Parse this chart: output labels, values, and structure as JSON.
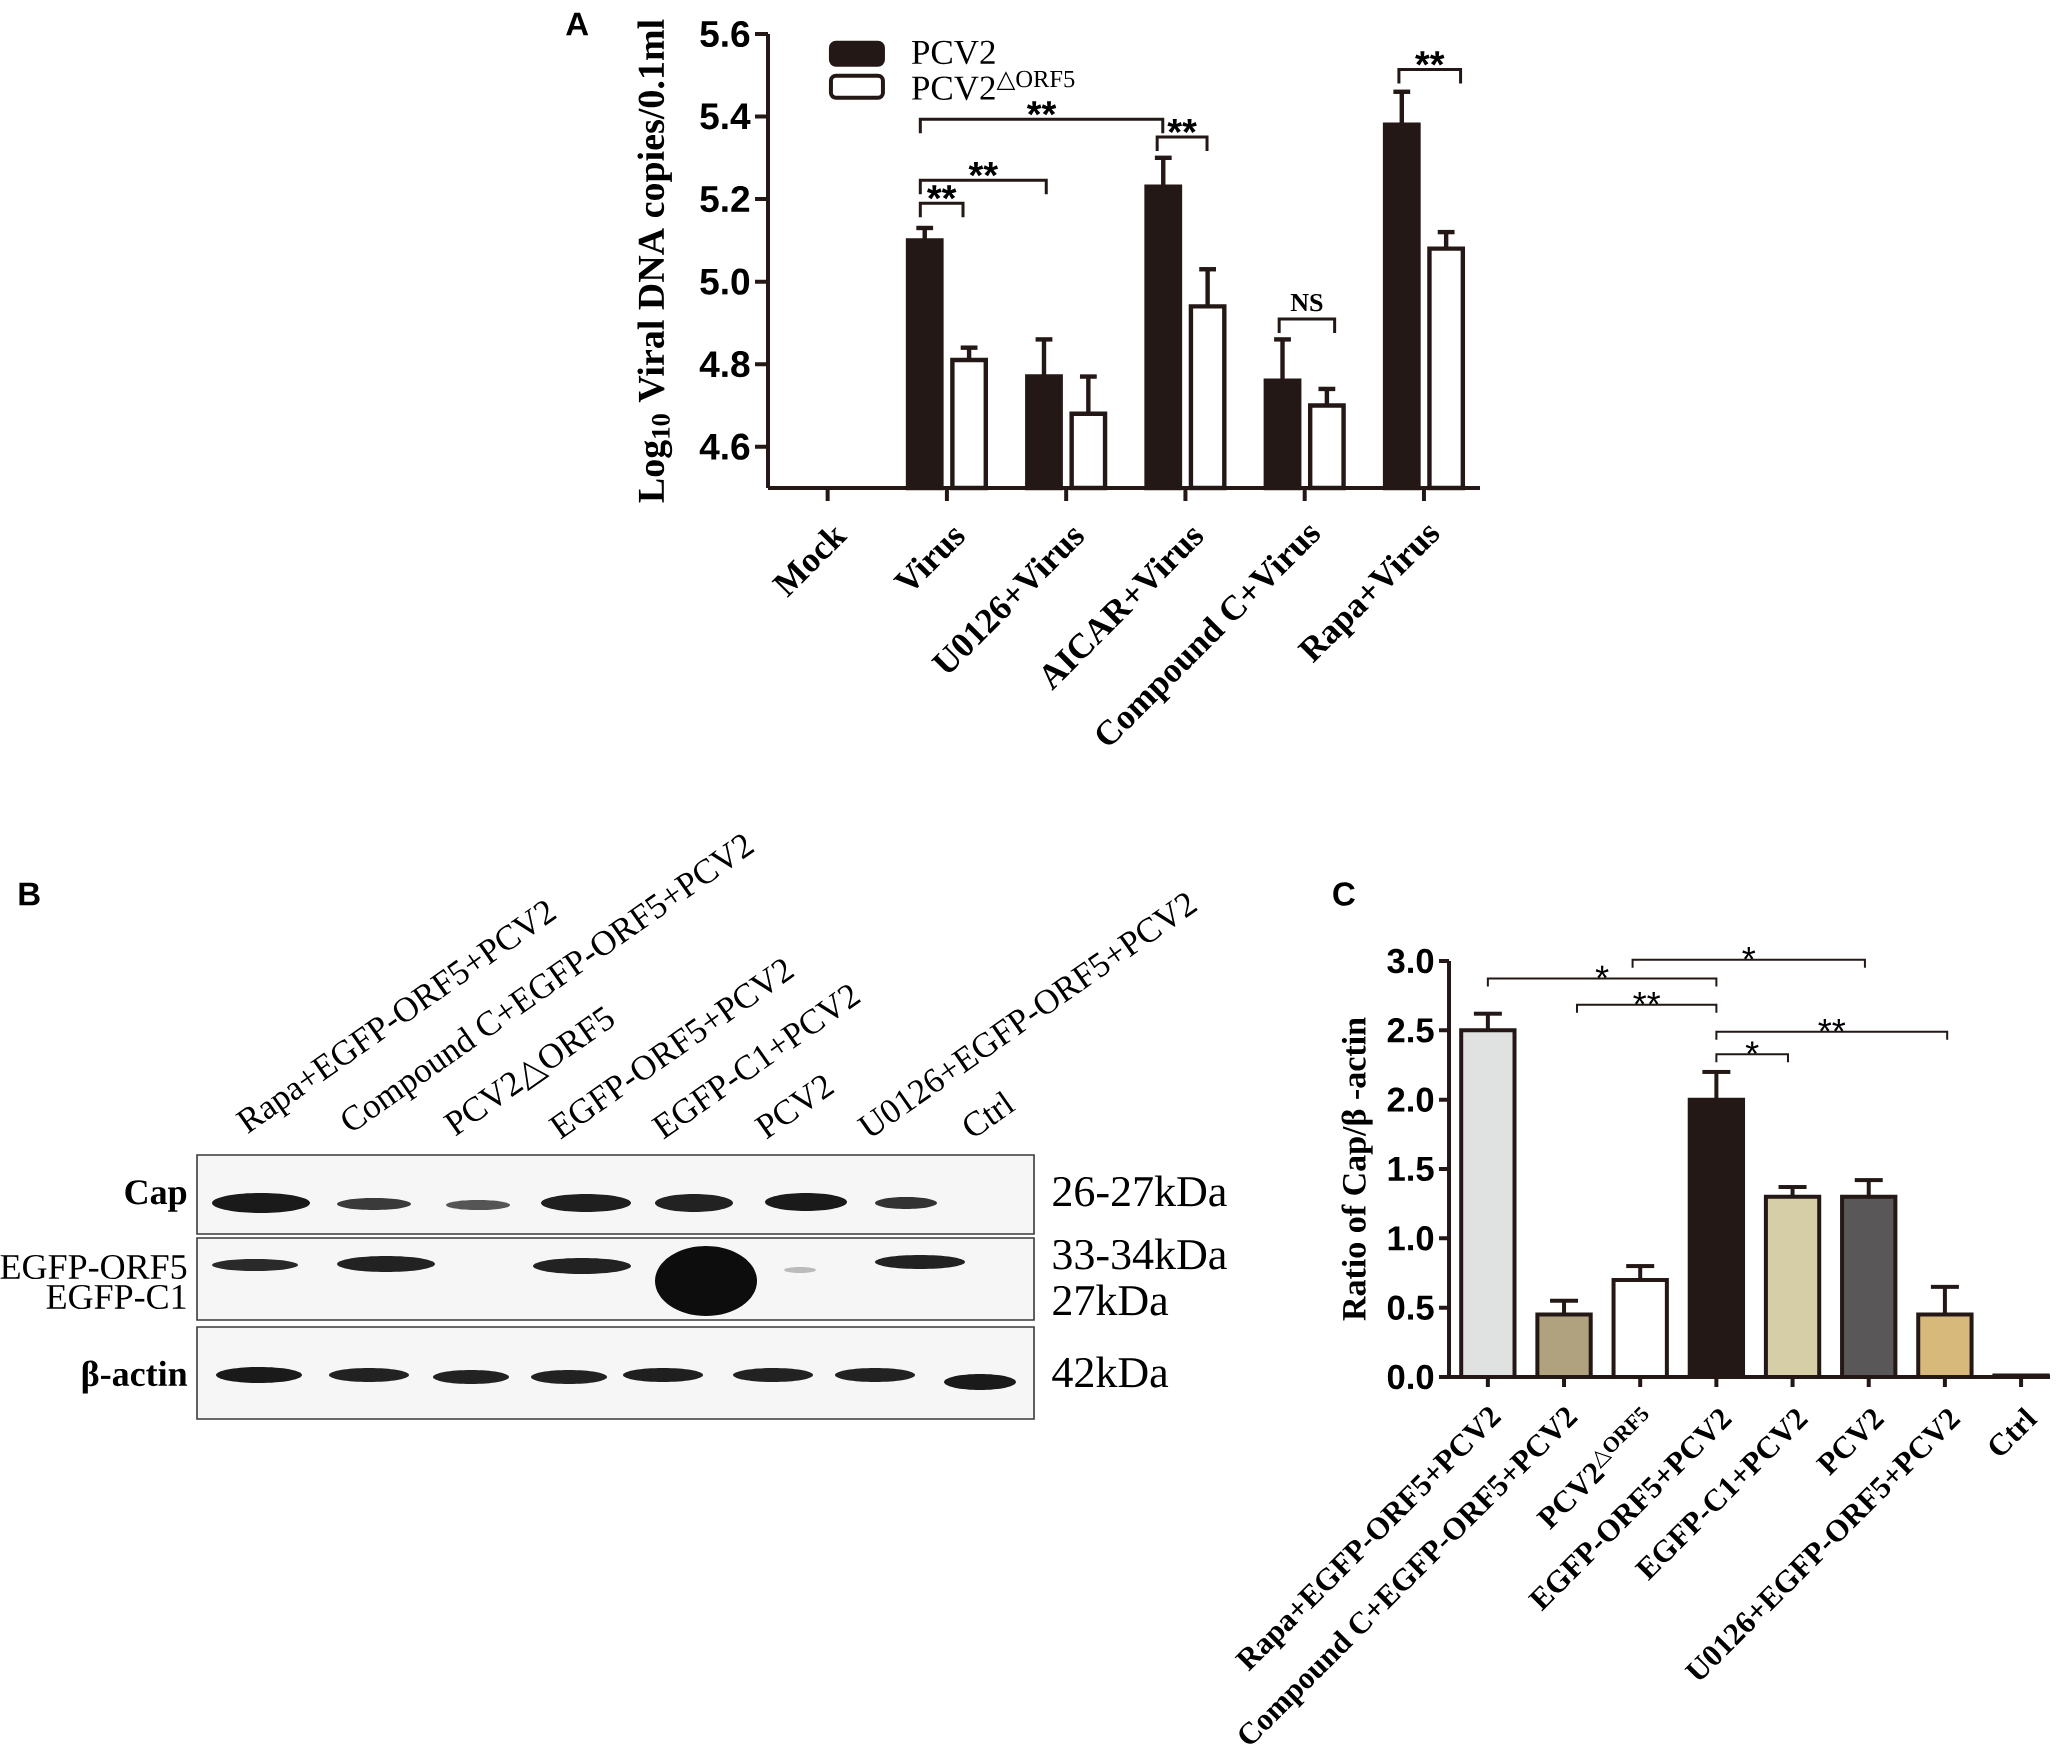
{
  "chart_data": [
    {
      "type": "bar",
      "title": "A",
      "ylabel": "Log$_{10}$ Viral DNA copies/0.1ml",
      "categories": [
        "Mock",
        "Virus",
        "U0126+Virus",
        "AICAR+Virus",
        "Compound C+Virus",
        "Rapa+Virus"
      ],
      "series": [
        {
          "name": "PCV2",
          "color": "#231815",
          "values": [
            null,
            5.1,
            4.77,
            5.23,
            4.76,
            5.38
          ],
          "errors": [
            null,
            [
              5.1,
              5.13
            ],
            [
              4.77,
              4.86
            ],
            [
              5.23,
              5.3
            ],
            [
              4.76,
              4.86
            ],
            [
              5.38,
              5.46
            ]
          ]
        },
        {
          "name": "PCV2$^{△ORF5}$",
          "color": "#ffffff",
          "values": [
            null,
            4.81,
            4.68,
            4.94,
            4.7,
            5.08
          ],
          "errors": [
            null,
            [
              4.81,
              4.84
            ],
            [
              4.68,
              4.77
            ],
            [
              4.94,
              5.03
            ],
            [
              4.7,
              4.74
            ],
            [
              5.08,
              5.12
            ]
          ]
        }
      ],
      "ylim": [
        4.5,
        5.6
      ],
      "yticks": [
        4.6,
        4.8,
        {
          "value": 5,
          "label": "5.0"
        },
        5.2,
        5.4,
        5.6
      ],
      "legend": "top left",
      "annotations": [
        "**",
        "**",
        "**",
        "**",
        "NS",
        "**"
      ]
    },
    {
      "type": "other",
      "title": "B",
      "categories": [
        "Rapa+EGFP-ORF5+PCV2",
        "Compound C+EGFP-ORF5+PCV2",
        "PCV2△ORF5",
        "EGFP-ORF5+PCV2",
        "EGFP-C1+PCV2",
        "PCV2",
        "U0126+EGFP-ORF5+PCV2",
        "Ctrl"
      ],
      "y_categories": [
        "Cap",
        "EGFP-ORF5",
        "EGFP-C1",
        "β-actin"
      ],
      "y2_categories": [
        "26-27kDa",
        "33-34kDa",
        "27kDa",
        "42kDa"
      ]
    },
    {
      "type": "bar",
      "title": "C",
      "ylabel": "Ratio of Cap/β -actin",
      "categories": [
        "Rapa+EGFP-ORF5+PCV2",
        "Compound C+EGFP-ORF5+PCV2",
        "PCV2$^{△ORF5}$",
        "EGFP-ORF5+PCV2",
        "EGFP-C1+PCV2",
        "PCV2",
        "U0126+EGFP-ORF5+PCV2",
        "Ctrl"
      ],
      "values": [
        2.5,
        0.45,
        0.7,
        2.0,
        1.3,
        1.3,
        0.45,
        0.01
      ],
      "colors": [
        "#dfe2e0",
        "#b0a27e",
        "#ffffff",
        "#231815",
        "#d6cea7",
        "#595757",
        "#d8b97c",
        "#ffffff"
      ],
      "errors": [
        [
          2.5,
          2.62
        ],
        [
          0.45,
          0.55
        ],
        [
          0.7,
          0.8
        ],
        [
          2.0,
          2.2
        ],
        [
          1.3,
          1.37
        ],
        [
          1.3,
          1.42
        ],
        [
          0.45,
          0.65
        ],
        null
      ],
      "ylim": [
        0,
        3
      ],
      "yticks": [
        {
          "value": 0,
          "label": "0.0"
        },
        0.5,
        {
          "value": 1,
          "label": "1.0"
        },
        1.5,
        {
          "value": 2,
          "label": "2.0"
        },
        2.5,
        {
          "value": 3,
          "label": "3.0"
        }
      ],
      "annotations": [
        "*",
        "*",
        "**",
        "**",
        "*"
      ]
    }
  ]
}
